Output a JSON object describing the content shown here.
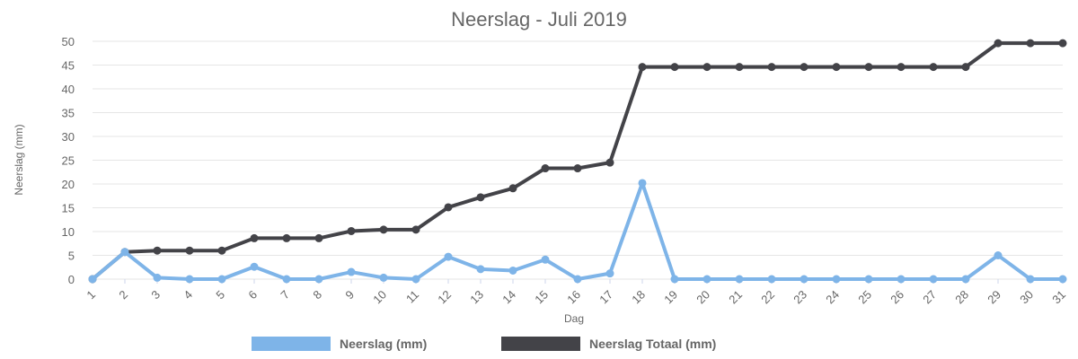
{
  "chart_data": {
    "type": "line",
    "title": "Neerslag - Juli 2019",
    "xlabel": "Dag",
    "ylabel": "Neerslag (mm)",
    "ylim": [
      0,
      50
    ],
    "yticks": [
      0,
      5,
      10,
      15,
      20,
      25,
      30,
      35,
      40,
      45,
      50
    ],
    "grid": true,
    "legend_position": "bottom",
    "categories": [
      "1",
      "2",
      "3",
      "4",
      "5",
      "6",
      "7",
      "8",
      "9",
      "10",
      "11",
      "12",
      "13",
      "14",
      "15",
      "16",
      "17",
      "18",
      "19",
      "20",
      "21",
      "22",
      "23",
      "24",
      "25",
      "26",
      "27",
      "28",
      "29",
      "30",
      "31"
    ],
    "series": [
      {
        "name": "Neerslag (mm)",
        "color": "#7eb4e8",
        "values": [
          0,
          5.7,
          0.3,
          0,
          0,
          2.6,
          0,
          0,
          1.5,
          0.3,
          0,
          4.7,
          2.1,
          1.8,
          4.1,
          0,
          1.2,
          20.2,
          0,
          0,
          0,
          0,
          0,
          0,
          0,
          0,
          0,
          0,
          5,
          0,
          0
        ]
      },
      {
        "name": "Neerslag Totaal (mm)",
        "color": "#434348",
        "values": [
          0,
          5.7,
          6,
          6,
          6,
          8.6,
          8.6,
          8.6,
          10.1,
          10.4,
          10.4,
          15.1,
          17.2,
          19.1,
          23.3,
          23.3,
          24.5,
          44.6,
          44.6,
          44.6,
          44.6,
          44.6,
          44.6,
          44.6,
          44.6,
          44.6,
          44.6,
          44.6,
          49.6,
          49.6,
          49.6
        ]
      }
    ]
  }
}
